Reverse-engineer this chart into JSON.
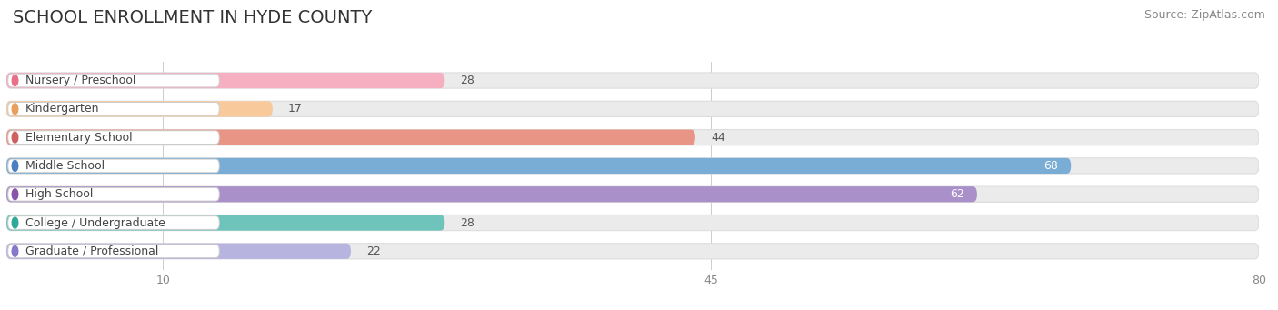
{
  "title": "SCHOOL ENROLLMENT IN HYDE COUNTY",
  "source": "Source: ZipAtlas.com",
  "categories": [
    "Nursery / Preschool",
    "Kindergarten",
    "Elementary School",
    "Middle School",
    "High School",
    "College / Undergraduate",
    "Graduate / Professional"
  ],
  "values": [
    28,
    17,
    44,
    68,
    62,
    28,
    22
  ],
  "bar_colors": [
    "#f5afc0",
    "#f8c99a",
    "#e89585",
    "#7aadd6",
    "#aa90c8",
    "#6ec4bb",
    "#b8b4e0"
  ],
  "dot_colors": [
    "#e8708a",
    "#e8a060",
    "#d06060",
    "#4a80c0",
    "#8855a8",
    "#30a898",
    "#8878c8"
  ],
  "value_label_colors": [
    "#555555",
    "#555555",
    "#555555",
    "#ffffff",
    "#ffffff",
    "#555555",
    "#555555"
  ],
  "xlim": [
    0,
    80
  ],
  "xticks": [
    10,
    45,
    80
  ],
  "bg_bar_color": "#ebebeb",
  "bg_bar_edge_color": "#dddddd",
  "background_color": "#ffffff",
  "title_fontsize": 14,
  "source_fontsize": 9,
  "label_fontsize": 9,
  "value_fontsize": 9
}
